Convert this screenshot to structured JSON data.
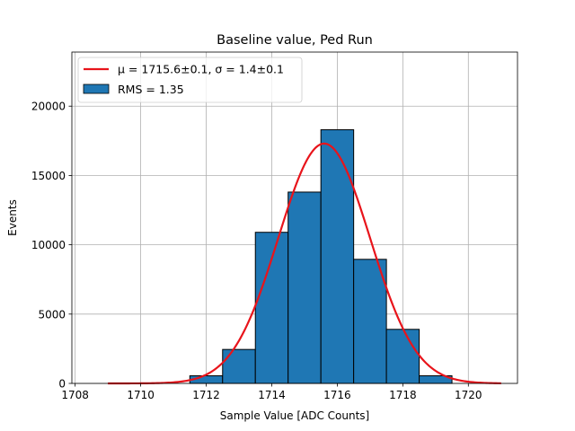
{
  "chart_data": {
    "type": "bar",
    "title": "Baseline value, Ped Run",
    "xlabel": "Sample Value [ADC Counts]",
    "ylabel": "Events",
    "xlim": [
      1707.9,
      1721.5
    ],
    "ylim": [
      0,
      23900
    ],
    "x_ticks": [
      1708,
      1710,
      1712,
      1714,
      1716,
      1718,
      1720
    ],
    "y_ticks": [
      0,
      5000,
      10000,
      15000,
      20000
    ],
    "grid": true,
    "legend_position": "upper-left",
    "bin_edges": [
      1708.5,
      1709.5,
      1710.5,
      1711.5,
      1712.5,
      1713.5,
      1714.5,
      1715.5,
      1716.5,
      1717.5,
      1718.5,
      1719.5
    ],
    "values": [
      0,
      0,
      0,
      550,
      2450,
      10900,
      13800,
      18300,
      8950,
      3900,
      550
    ],
    "bar_color": "#1f77b4",
    "fit": {
      "label": "μ = 1715.6±0.1, σ = 1.4±0.1",
      "mu": 1715.6,
      "sigma": 1.4,
      "amplitude": 17300,
      "x_range": [
        1709,
        1721
      ],
      "color": "#e8141b"
    },
    "series": [
      {
        "name": "μ = 1715.6±0.1, σ = 1.4±0.1",
        "kind": "line"
      },
      {
        "name": "RMS = 1.35",
        "kind": "histogram"
      }
    ]
  }
}
